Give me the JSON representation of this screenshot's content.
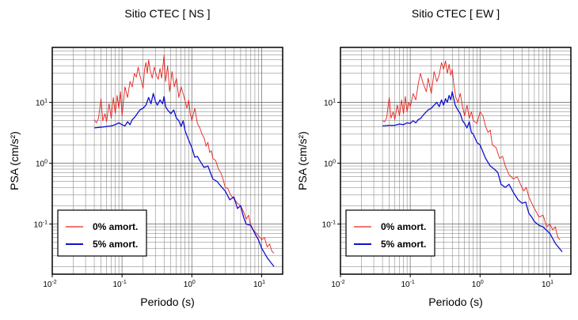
{
  "chart_data": [
    {
      "type": "line",
      "title": "Sitio CTEC [ NS ]",
      "xlabel": "Periodo (s)",
      "ylabel": "PSA (cm/s²)",
      "xscale": "log",
      "yscale": "log",
      "xlim": [
        0.01,
        20
      ],
      "ylim": [
        0.015,
        80
      ],
      "xticks": [
        {
          "v": 0.01,
          "base": "10",
          "exp": "-2"
        },
        {
          "v": 0.1,
          "base": "10",
          "exp": "-1"
        },
        {
          "v": 1,
          "base": "10",
          "exp": "0"
        },
        {
          "v": 10,
          "base": "10",
          "exp": "1"
        }
      ],
      "yticks": [
        {
          "v": 0.1,
          "base": "10",
          "exp": "-1"
        },
        {
          "v": 1,
          "base": "10",
          "exp": "0"
        },
        {
          "v": 10,
          "base": "10",
          "exp": "1"
        }
      ],
      "grid": true,
      "legend_position": "bottom-left",
      "series": [
        {
          "name": "0% amort.",
          "color": "#e8231e",
          "x": [
            0.04,
            0.043,
            0.046,
            0.05,
            0.053,
            0.057,
            0.06,
            0.065,
            0.07,
            0.075,
            0.08,
            0.085,
            0.09,
            0.095,
            0.1,
            0.11,
            0.12,
            0.13,
            0.14,
            0.15,
            0.16,
            0.17,
            0.18,
            0.19,
            0.2,
            0.21,
            0.22,
            0.23,
            0.24,
            0.25,
            0.27,
            0.29,
            0.31,
            0.33,
            0.35,
            0.37,
            0.4,
            0.42,
            0.45,
            0.48,
            0.52,
            0.56,
            0.6,
            0.65,
            0.7,
            0.75,
            0.8,
            0.85,
            0.9,
            0.95,
            1.0,
            1.1,
            1.2,
            1.3,
            1.4,
            1.5,
            1.6,
            1.7,
            1.8,
            1.9,
            2.0,
            2.2,
            2.4,
            2.6,
            2.8,
            3.0,
            3.3,
            3.6,
            4.0,
            4.5,
            5.0,
            5.5,
            6.0,
            6.5,
            7.0,
            8.0,
            9.0,
            10.0,
            11.0,
            12.0,
            13.0,
            14.0,
            15.0
          ],
          "y": [
            5.2,
            4.6,
            5.5,
            11.5,
            5.0,
            6.5,
            4.8,
            9.5,
            5.5,
            12.0,
            6.5,
            13.0,
            8.0,
            15.0,
            6.0,
            18.0,
            12.0,
            22.0,
            18.0,
            30.0,
            26.0,
            38.0,
            28.0,
            22.0,
            17.0,
            35.0,
            45.0,
            30.0,
            50.0,
            36.0,
            25.0,
            38.0,
            28.0,
            24.0,
            36.0,
            25.0,
            60.0,
            22.0,
            40.0,
            15.0,
            32.0,
            18.0,
            25.0,
            12.0,
            18.0,
            14.0,
            10.5,
            8.0,
            11.0,
            6.5,
            5.0,
            8.0,
            4.5,
            3.8,
            3.0,
            2.6,
            1.9,
            2.2,
            1.5,
            1.6,
            1.2,
            1.1,
            0.8,
            0.7,
            0.55,
            0.4,
            0.38,
            0.3,
            0.26,
            0.22,
            0.2,
            0.16,
            0.12,
            0.14,
            0.09,
            0.075,
            0.065,
            0.055,
            0.06,
            0.042,
            0.047,
            0.036,
            0.033
          ]
        },
        {
          "name": "5% amort.",
          "color": "#1010d0",
          "x": [
            0.04,
            0.05,
            0.06,
            0.07,
            0.08,
            0.09,
            0.1,
            0.11,
            0.12,
            0.13,
            0.14,
            0.15,
            0.16,
            0.18,
            0.2,
            0.22,
            0.24,
            0.26,
            0.28,
            0.3,
            0.32,
            0.35,
            0.38,
            0.4,
            0.42,
            0.45,
            0.5,
            0.55,
            0.6,
            0.65,
            0.7,
            0.75,
            0.8,
            0.9,
            1.0,
            1.1,
            1.2,
            1.3,
            1.5,
            1.7,
            2.0,
            2.3,
            2.6,
            3.0,
            3.5,
            4.0,
            4.5,
            5.0,
            5.5,
            6.0,
            7.0,
            8.0,
            9.0,
            10.0,
            12.0,
            15.0
          ],
          "y": [
            3.8,
            3.9,
            4.0,
            4.1,
            4.3,
            4.6,
            4.3,
            4.1,
            4.8,
            4.3,
            5.2,
            5.6,
            6.2,
            7.5,
            8.0,
            9.0,
            12.0,
            9.5,
            14.0,
            10.5,
            9.0,
            11.0,
            9.5,
            12.5,
            8.5,
            7.5,
            6.5,
            7.5,
            5.5,
            5.0,
            4.0,
            5.0,
            3.4,
            2.4,
            1.8,
            1.25,
            1.3,
            1.1,
            0.85,
            0.9,
            0.55,
            0.5,
            0.42,
            0.35,
            0.25,
            0.28,
            0.18,
            0.2,
            0.13,
            0.1,
            0.095,
            0.07,
            0.055,
            0.04,
            0.028,
            0.02
          ]
        }
      ]
    },
    {
      "type": "line",
      "title": "Sitio CTEC [ EW ]",
      "xlabel": "Periodo (s)",
      "ylabel": "PSA (cm/s²)",
      "xscale": "log",
      "yscale": "log",
      "xlim": [
        0.01,
        20
      ],
      "ylim": [
        0.015,
        80
      ],
      "xticks": [
        {
          "v": 0.01,
          "base": "10",
          "exp": "-2"
        },
        {
          "v": 0.1,
          "base": "10",
          "exp": "-1"
        },
        {
          "v": 1,
          "base": "10",
          "exp": "0"
        },
        {
          "v": 10,
          "base": "10",
          "exp": "1"
        }
      ],
      "yticks": [
        {
          "v": 0.1,
          "base": "10",
          "exp": "-1"
        },
        {
          "v": 1,
          "base": "10",
          "exp": "0"
        },
        {
          "v": 10,
          "base": "10",
          "exp": "1"
        }
      ],
      "grid": true,
      "legend_position": "bottom-left",
      "series": [
        {
          "name": "0% amort.",
          "color": "#e8231e",
          "x": [
            0.04,
            0.043,
            0.046,
            0.05,
            0.053,
            0.057,
            0.06,
            0.065,
            0.07,
            0.075,
            0.08,
            0.085,
            0.09,
            0.095,
            0.1,
            0.11,
            0.12,
            0.13,
            0.14,
            0.15,
            0.16,
            0.17,
            0.18,
            0.2,
            0.22,
            0.24,
            0.26,
            0.28,
            0.3,
            0.32,
            0.34,
            0.36,
            0.38,
            0.4,
            0.42,
            0.45,
            0.48,
            0.52,
            0.56,
            0.6,
            0.65,
            0.7,
            0.75,
            0.8,
            0.9,
            1.0,
            1.1,
            1.2,
            1.3,
            1.4,
            1.5,
            1.7,
            1.9,
            2.1,
            2.3,
            2.6,
            3.0,
            3.4,
            3.8,
            4.2,
            4.6,
            5.0,
            5.5,
            6.0,
            7.0,
            8.0,
            9.0,
            10.0,
            11.0,
            12.0,
            13.0,
            14.0
          ],
          "y": [
            5.0,
            4.8,
            5.6,
            12.0,
            5.5,
            7.0,
            5.2,
            9.0,
            6.0,
            11.0,
            6.5,
            12.5,
            7.0,
            10.0,
            8.5,
            14.0,
            11.0,
            20.0,
            30.0,
            22.0,
            18.0,
            15.0,
            25.0,
            14.0,
            32.0,
            22.0,
            28.0,
            45.0,
            35.0,
            48.0,
            30.0,
            42.0,
            28.0,
            35.0,
            20.0,
            12.0,
            10.0,
            14.0,
            8.5,
            6.0,
            9.0,
            5.5,
            7.0,
            5.0,
            4.5,
            7.0,
            6.0,
            4.0,
            3.2,
            3.5,
            2.0,
            1.8,
            1.2,
            1.3,
            0.9,
            0.65,
            0.55,
            0.6,
            0.45,
            0.35,
            0.4,
            0.28,
            0.22,
            0.18,
            0.13,
            0.14,
            0.09,
            0.1,
            0.08,
            0.09,
            0.06,
            0.055
          ]
        },
        {
          "name": "5% amort.",
          "color": "#1010d0",
          "x": [
            0.04,
            0.05,
            0.06,
            0.07,
            0.08,
            0.09,
            0.1,
            0.11,
            0.12,
            0.13,
            0.14,
            0.15,
            0.16,
            0.18,
            0.2,
            0.22,
            0.24,
            0.26,
            0.28,
            0.3,
            0.32,
            0.34,
            0.36,
            0.38,
            0.4,
            0.44,
            0.48,
            0.52,
            0.56,
            0.6,
            0.65,
            0.7,
            0.75,
            0.8,
            0.9,
            1.0,
            1.2,
            1.4,
            1.6,
            1.8,
            2.0,
            2.3,
            2.6,
            3.0,
            3.5,
            4.0,
            4.5,
            5.0,
            5.5,
            6.0,
            7.0,
            8.0,
            10.0,
            12.0,
            15.0
          ],
          "y": [
            4.1,
            4.2,
            4.2,
            4.4,
            4.3,
            4.6,
            4.5,
            5.0,
            4.6,
            5.2,
            5.4,
            6.0,
            6.5,
            7.5,
            8.0,
            9.0,
            10.0,
            8.5,
            11.0,
            9.0,
            11.5,
            10.0,
            13.0,
            11.0,
            15.0,
            9.0,
            7.5,
            6.5,
            5.0,
            4.5,
            3.8,
            4.8,
            3.2,
            3.0,
            2.2,
            2.0,
            1.2,
            0.9,
            0.8,
            0.7,
            0.45,
            0.4,
            0.45,
            0.33,
            0.25,
            0.22,
            0.23,
            0.15,
            0.13,
            0.11,
            0.095,
            0.09,
            0.07,
            0.048,
            0.035
          ]
        }
      ]
    }
  ]
}
